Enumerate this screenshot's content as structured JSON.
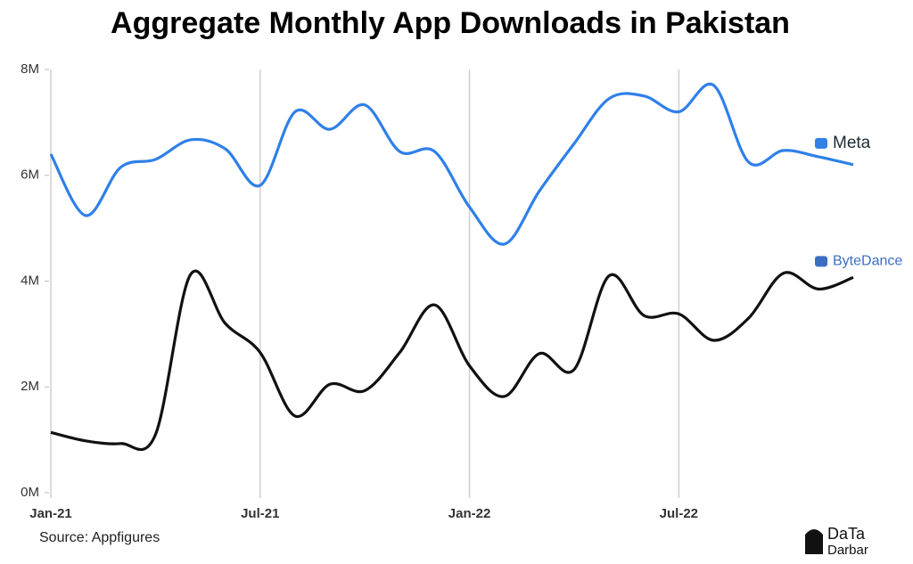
{
  "chart_data": {
    "type": "line",
    "title": "Aggregate Monthly App Downloads in Pakistan",
    "source": "Source: Appfigures",
    "x": [
      0,
      1,
      2,
      3,
      4,
      5,
      6,
      7,
      8,
      9,
      10,
      11,
      12,
      13,
      14,
      15,
      16,
      17,
      18,
      19,
      20,
      21,
      22,
      23
    ],
    "xlim": [
      0,
      23
    ],
    "xticks": [
      {
        "value": 0,
        "label": "Jan-21"
      },
      {
        "value": 6,
        "label": "Jul-21"
      },
      {
        "value": 12,
        "label": "Jan-22"
      },
      {
        "value": 18,
        "label": "Jul-22"
      }
    ],
    "ylim": [
      0,
      8000000
    ],
    "yticks": [
      {
        "value": 0,
        "label": "0M"
      },
      {
        "value": 2000000,
        "label": "2M"
      },
      {
        "value": 4000000,
        "label": "4M"
      },
      {
        "value": 6000000,
        "label": "6M"
      },
      {
        "value": 8000000,
        "label": "8M"
      }
    ],
    "grid": "x",
    "series": [
      {
        "name": "Meta",
        "color": "#2f80e8",
        "values": [
          6400000,
          5240000,
          6150000,
          6300000,
          6670000,
          6500000,
          5810000,
          7200000,
          6870000,
          7330000,
          6450000,
          6450000,
          5400000,
          4700000,
          5700000,
          6600000,
          7450000,
          7500000,
          7200000,
          7700000,
          6250000,
          6470000,
          6350000,
          6200000
        ]
      },
      {
        "name": "ByteDance",
        "color": "#111111",
        "values": [
          1140000,
          980000,
          930000,
          1100000,
          4120000,
          3200000,
          2650000,
          1450000,
          2050000,
          1930000,
          2650000,
          3550000,
          2400000,
          1820000,
          2630000,
          2330000,
          4100000,
          3350000,
          3380000,
          2880000,
          3300000,
          4150000,
          3850000,
          4070000
        ]
      }
    ]
  },
  "logo": {
    "top": "DaTa",
    "bottom": "Darbar"
  }
}
